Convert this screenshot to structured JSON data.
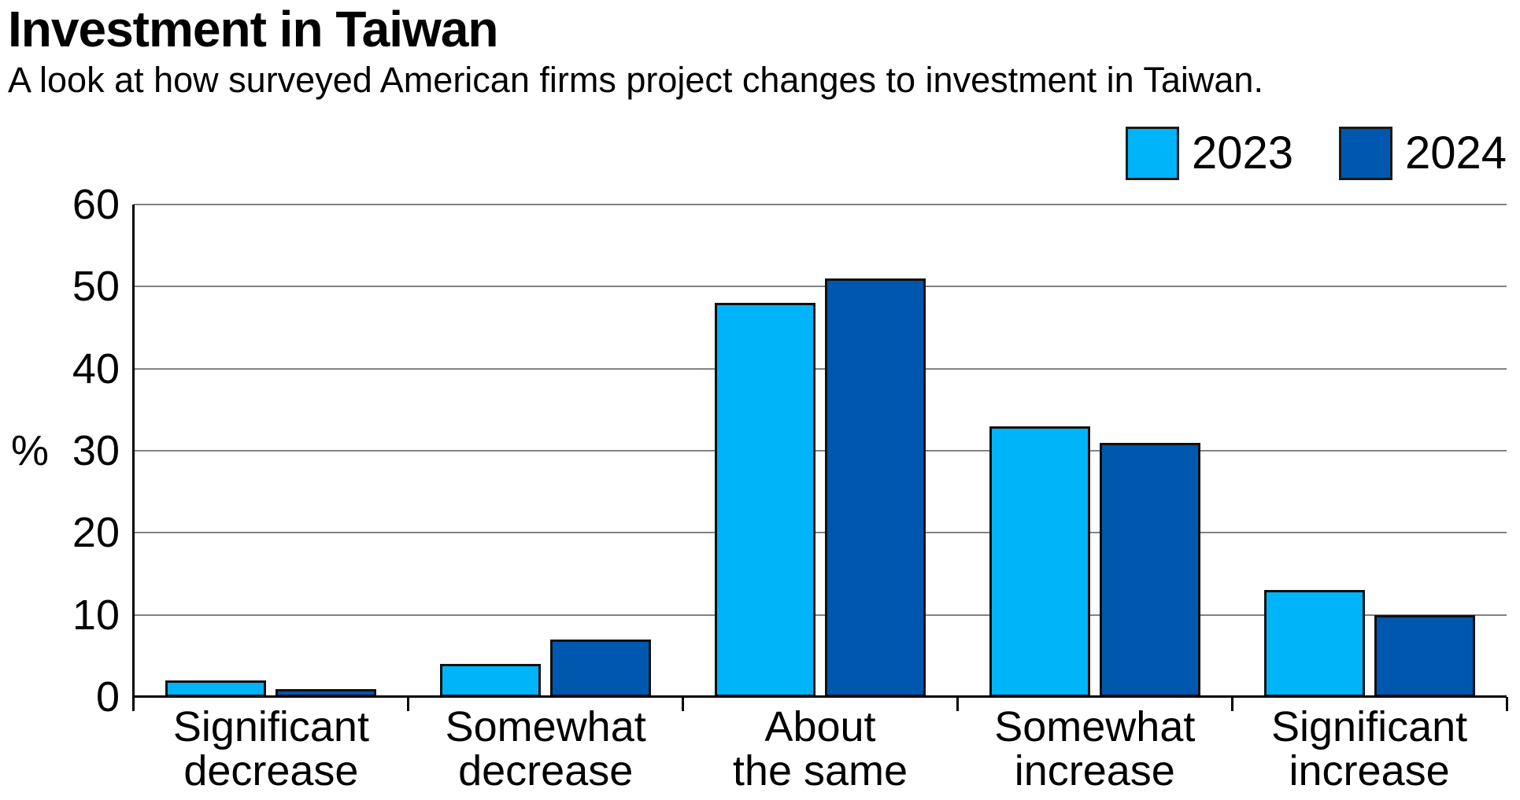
{
  "header": {
    "title": "Investment in Taiwan",
    "subtitle": "A look at how surveyed American firms project changes to investment in Taiwan."
  },
  "legend": {
    "entries": [
      {
        "label": "2023",
        "color": "#00B4FA"
      },
      {
        "label": "2024",
        "color": "#0057AE"
      }
    ],
    "position": "top-right"
  },
  "chart_data": {
    "type": "bar",
    "title": "Investment in Taiwan",
    "subtitle": "A look at how surveyed American firms project changes to investment in Taiwan.",
    "categories": [
      "Significant decrease",
      "Somewhat decrease",
      "About the same",
      "Somewhat increase",
      "Significant increase"
    ],
    "category_label_lines": [
      [
        "Significant",
        "decrease"
      ],
      [
        "Somewhat",
        "decrease"
      ],
      [
        "About",
        "the same"
      ],
      [
        "Somewhat",
        "increase"
      ],
      [
        "Significant",
        "increase"
      ]
    ],
    "series": [
      {
        "name": "2023",
        "color": "#00B4FA",
        "values": [
          2,
          4,
          48,
          33,
          13
        ]
      },
      {
        "name": "2024",
        "color": "#0057AE",
        "values": [
          1,
          7,
          51,
          31,
          10
        ]
      }
    ],
    "xlabel": "",
    "ylabel": "%",
    "ylim": [
      0,
      60
    ],
    "yticks": [
      0,
      10,
      20,
      30,
      40,
      50,
      60
    ],
    "grid": true,
    "bar_border_color": "#101010",
    "legend_position": "top-right"
  }
}
